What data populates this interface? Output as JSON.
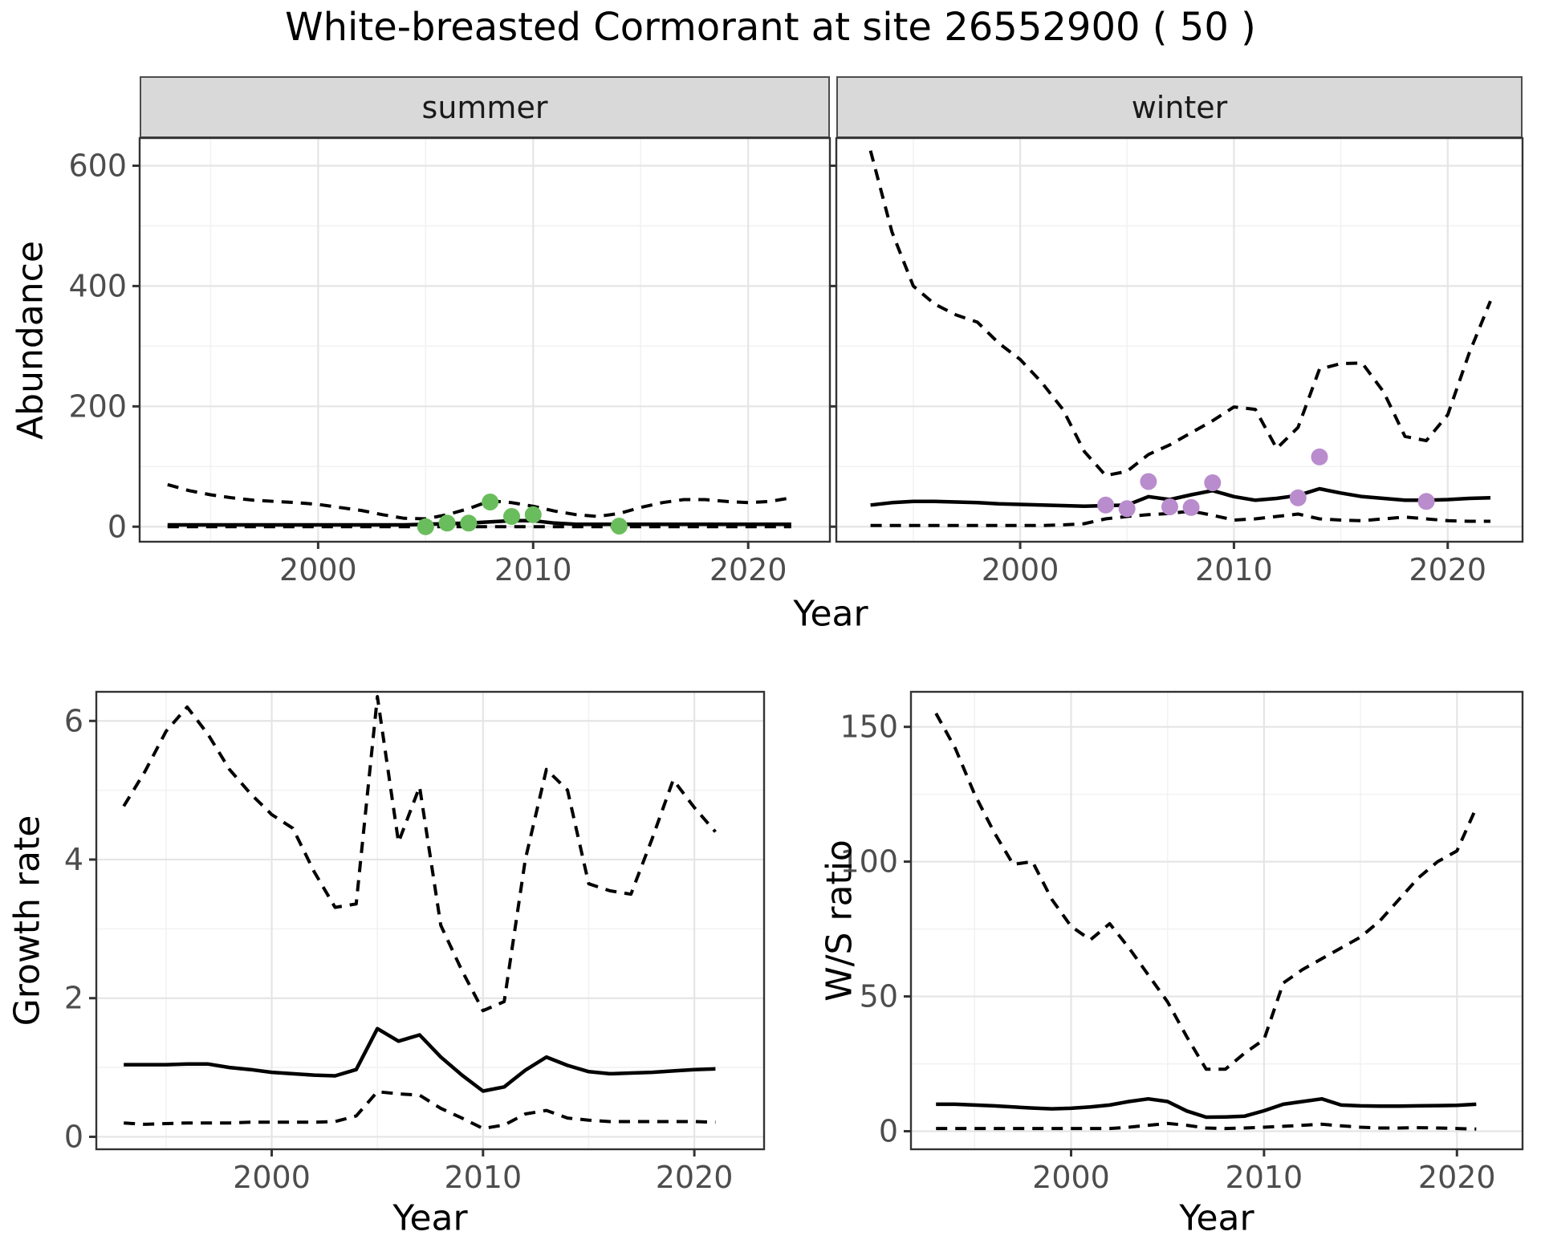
{
  "title": "White-breasted Cormorant at site 26552900 ( 50 )",
  "facets": {
    "summer": "summer",
    "winter": "winter"
  },
  "axis_titles": {
    "x": "Year",
    "y_top": "Abundance",
    "y_growth": "Growth rate",
    "y_ws": "W/S ratio"
  },
  "colors": {
    "summer_points": "#6abd5c",
    "winter_points": "#b98ccd",
    "line": "#000000",
    "tick_label": "#4d4d4d",
    "axis_text": "#000000",
    "grid_major": "#e5e5e5",
    "grid_minor": "#f2f2f2",
    "strip_bg": "#d9d9d9",
    "panel_border": "#333333",
    "panel_bg": "#ffffff"
  },
  "chart_data": [
    {
      "type": "line",
      "name": "abundance-summer",
      "facet": "summer",
      "title": "",
      "xlabel": "Year",
      "ylabel": "Abundance",
      "x": [
        1993,
        1994,
        1995,
        1996,
        1997,
        1998,
        1999,
        2000,
        2001,
        2002,
        2003,
        2004,
        2005,
        2006,
        2007,
        2008,
        2009,
        2010,
        2011,
        2012,
        2013,
        2014,
        2015,
        2016,
        2017,
        2018,
        2019,
        2020,
        2021,
        2022
      ],
      "series": [
        {
          "name": "upper_ci",
          "style": "dashed",
          "values": [
            70,
            60,
            53,
            48,
            44,
            42,
            40,
            37,
            32,
            27,
            20,
            14,
            13,
            20,
            30,
            43,
            40,
            34,
            26,
            20,
            17,
            22,
            32,
            40,
            45,
            45,
            42,
            40,
            42,
            48
          ]
        },
        {
          "name": "median",
          "style": "solid",
          "values": [
            3,
            3,
            3,
            3,
            3,
            3,
            3,
            3,
            3,
            3,
            3,
            3,
            4,
            5,
            6,
            8,
            10,
            10,
            6,
            4,
            4,
            4,
            4,
            4,
            4,
            4,
            4,
            4,
            4,
            4
          ]
        },
        {
          "name": "lower_ci",
          "style": "dashed",
          "values": [
            0,
            0,
            0,
            0,
            0,
            0,
            0,
            0,
            0,
            0,
            0,
            0,
            0,
            0,
            0,
            0,
            0,
            0,
            0,
            0,
            0,
            0,
            0,
            0,
            0,
            0,
            0,
            0,
            0,
            0
          ]
        }
      ],
      "points": [
        [
          2005,
          0
        ],
        [
          2006,
          6
        ],
        [
          2007,
          6
        ],
        [
          2008,
          41
        ],
        [
          2009,
          17
        ],
        [
          2010,
          20
        ],
        [
          2014,
          1
        ]
      ],
      "point_color": "#6abd5c",
      "xlim": [
        1991.7,
        2023.8
      ],
      "ylim": [
        -25,
        646
      ],
      "xticks": [
        2000,
        2010,
        2020
      ],
      "xminor": [
        1995,
        2005,
        2015
      ],
      "yticks": [
        0,
        200,
        400,
        600
      ],
      "yminor": [
        100,
        300,
        500
      ],
      "grid": true,
      "legend": "none"
    },
    {
      "type": "line",
      "name": "abundance-winter",
      "facet": "winter",
      "title": "",
      "xlabel": "Year",
      "ylabel": "Abundance",
      "x": [
        1993,
        1994,
        1995,
        1996,
        1997,
        1998,
        1999,
        2000,
        2001,
        2002,
        2003,
        2004,
        2005,
        2006,
        2007,
        2008,
        2009,
        2010,
        2011,
        2012,
        2013,
        2014,
        2015,
        2016,
        2017,
        2018,
        2019,
        2020,
        2021,
        2022
      ],
      "series": [
        {
          "name": "upper_ci",
          "style": "dashed",
          "values": [
            625,
            490,
            400,
            370,
            352,
            340,
            305,
            278,
            240,
            195,
            125,
            85,
            92,
            120,
            136,
            156,
            176,
            199,
            195,
            130,
            165,
            262,
            271,
            272,
            224,
            150,
            143,
            186,
            288,
            375
          ]
        },
        {
          "name": "median",
          "style": "solid",
          "values": [
            36,
            40,
            42,
            42,
            41,
            40,
            38,
            37,
            36,
            35,
            34,
            35,
            36,
            50,
            45,
            53,
            60,
            50,
            44,
            47,
            52,
            63,
            56,
            50,
            47,
            44,
            44,
            45,
            47,
            48
          ]
        },
        {
          "name": "lower_ci",
          "style": "dashed",
          "values": [
            2,
            2,
            2,
            2,
            2,
            2,
            2,
            2,
            2,
            3,
            5,
            13,
            17,
            20,
            22,
            26,
            19,
            11,
            13,
            17,
            21,
            13,
            11,
            10,
            13,
            16,
            13,
            10,
            9,
            9
          ]
        }
      ],
      "points": [
        [
          2004,
          36
        ],
        [
          2005,
          30
        ],
        [
          2006,
          75
        ],
        [
          2007,
          33
        ],
        [
          2008,
          32
        ],
        [
          2009,
          73
        ],
        [
          2013,
          48
        ],
        [
          2014,
          116
        ],
        [
          2019,
          42
        ]
      ],
      "point_color": "#b98ccd",
      "xlim": [
        1991.4,
        2023.5
      ],
      "ylim": [
        -25,
        646
      ],
      "xticks": [
        2000,
        2010,
        2020
      ],
      "xminor": [
        1995,
        2005,
        2015
      ],
      "yticks": [
        0,
        200,
        400,
        600
      ],
      "yminor": [
        100,
        300,
        500
      ],
      "grid": true,
      "legend": "none"
    },
    {
      "type": "line",
      "name": "growth-rate",
      "title": "",
      "xlabel": "Year",
      "ylabel": "Growth rate",
      "x": [
        1993,
        1994,
        1995,
        1996,
        1997,
        1998,
        1999,
        2000,
        2001,
        2002,
        2003,
        2004,
        2005,
        2006,
        2007,
        2008,
        2009,
        2010,
        2011,
        2012,
        2013,
        2014,
        2015,
        2016,
        2017,
        2018,
        2019,
        2020,
        2021
      ],
      "series": [
        {
          "name": "upper_ci",
          "style": "dashed",
          "values": [
            4.77,
            5.27,
            5.85,
            6.2,
            5.8,
            5.3,
            4.95,
            4.65,
            4.45,
            3.83,
            3.31,
            3.36,
            6.35,
            4.25,
            5.05,
            3.05,
            2.4,
            1.82,
            1.95,
            4.0,
            5.3,
            5.0,
            3.65,
            3.55,
            3.5,
            4.3,
            5.15,
            4.75,
            4.4
          ]
        },
        {
          "name": "median",
          "style": "solid",
          "values": [
            1.04,
            1.04,
            1.04,
            1.05,
            1.05,
            1.0,
            0.97,
            0.93,
            0.91,
            0.89,
            0.88,
            0.97,
            1.56,
            1.38,
            1.47,
            1.15,
            0.89,
            0.66,
            0.72,
            0.96,
            1.15,
            1.03,
            0.94,
            0.91,
            0.92,
            0.93,
            0.95,
            0.97,
            0.98
          ]
        },
        {
          "name": "lower_ci",
          "style": "dashed",
          "values": [
            0.2,
            0.18,
            0.19,
            0.2,
            0.2,
            0.2,
            0.21,
            0.21,
            0.21,
            0.21,
            0.22,
            0.3,
            0.65,
            0.62,
            0.6,
            0.41,
            0.27,
            0.12,
            0.17,
            0.33,
            0.38,
            0.27,
            0.24,
            0.22,
            0.22,
            0.22,
            0.22,
            0.22,
            0.21
          ]
        }
      ],
      "points": [],
      "point_color": "#6abd5c",
      "xlim": [
        1991.7,
        2023.3
      ],
      "ylim": [
        -0.18,
        6.42
      ],
      "xticks": [
        2000,
        2010,
        2020
      ],
      "xminor": [
        1995,
        2005,
        2015
      ],
      "yticks": [
        0,
        2,
        4,
        6
      ],
      "yminor": [
        1,
        3,
        5
      ],
      "grid": true,
      "legend": "none"
    },
    {
      "type": "line",
      "name": "ws-ratio",
      "title": "",
      "xlabel": "Year",
      "ylabel": "W/S ratio",
      "x": [
        1993,
        1994,
        1995,
        1996,
        1997,
        1998,
        1999,
        2000,
        2001,
        2002,
        2003,
        2004,
        2005,
        2006,
        2007,
        2008,
        2009,
        2010,
        2011,
        2012,
        2013,
        2014,
        2015,
        2016,
        2017,
        2018,
        2019,
        2020,
        2021
      ],
      "series": [
        {
          "name": "upper_ci",
          "style": "dashed",
          "values": [
            155,
            142,
            125,
            111,
            99,
            100,
            86,
            76,
            71,
            77,
            68,
            58,
            48,
            35,
            23,
            23,
            29,
            34,
            55,
            60,
            64,
            68,
            72,
            78,
            86,
            94,
            100,
            104,
            120
          ]
        },
        {
          "name": "median",
          "style": "solid",
          "values": [
            10,
            10,
            9.7,
            9.4,
            9,
            8.6,
            8.3,
            8.5,
            9,
            9.7,
            11,
            12,
            11,
            7.5,
            5.2,
            5.3,
            5.6,
            7.6,
            10,
            11,
            12,
            9.7,
            9.4,
            9.3,
            9.3,
            9.4,
            9.5,
            9.6,
            10
          ]
        },
        {
          "name": "lower_ci",
          "style": "dashed",
          "values": [
            1,
            1,
            1,
            1,
            1,
            1,
            1,
            1,
            1,
            1,
            1.5,
            2.2,
            2.9,
            2.2,
            1.2,
            1,
            1.2,
            1.5,
            1.8,
            2.2,
            2.6,
            2,
            1.5,
            1.2,
            1.2,
            1.3,
            1.2,
            1,
            0.8
          ]
        }
      ],
      "points": [],
      "point_color": "#6abd5c",
      "xlim": [
        1991.7,
        2023.4
      ],
      "ylim": [
        -6.7,
        163
      ],
      "xticks": [
        2000,
        2010,
        2020
      ],
      "xminor": [
        1995,
        2005,
        2015
      ],
      "yticks": [
        0,
        50,
        100,
        150
      ],
      "yminor": [
        25,
        75,
        125
      ],
      "grid": true,
      "legend": "none"
    }
  ]
}
